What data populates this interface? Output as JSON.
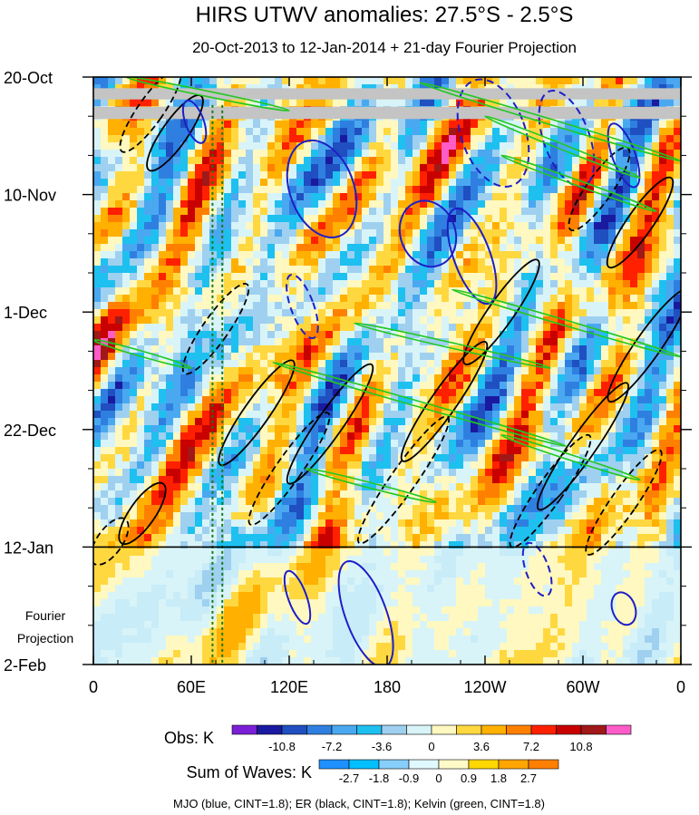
{
  "chart_data": {
    "type": "heatmap",
    "title": "HIRS UTWV anomalies: 27.5°S - 2.5°S",
    "subtitle": "20-Oct-2013 to 12-Jan-2014 + 21-day Fourier Projection",
    "x_ticks": [
      "0",
      "60E",
      "120E",
      "180",
      "120W",
      "60W",
      "0"
    ],
    "x_range": [
      0,
      360
    ],
    "y_ticks": [
      "20-Oct",
      "10-Nov",
      "1-Dec",
      "22-Dec",
      "12-Jan",
      "2-Feb"
    ],
    "y_range_days": [
      0,
      105
    ],
    "projection_start_day": 84,
    "projection_label": [
      "Fourier",
      "Projection"
    ],
    "missing_bands_days": [
      [
        2.0,
        4.0
      ],
      [
        5.3,
        7.5
      ]
    ],
    "obs_colorbar": {
      "label": "Obs: K",
      "levels": [
        "-10.8",
        "-7.2",
        "-3.6",
        "0",
        "3.6",
        "7.2",
        "10.8"
      ],
      "colors": [
        "#7b1fd6",
        "#1a1aa0",
        "#1f4fc0",
        "#2f7fe0",
        "#4aa8f0",
        "#1ec0f0",
        "#9fd0f0",
        "#d8f4f8",
        "#fff8c0",
        "#ffd840",
        "#ffb000",
        "#ff8000",
        "#ff2000",
        "#c80000",
        "#a01818",
        "#ff5cc8"
      ]
    },
    "waves_colorbar": {
      "label": "Sum of Waves: K",
      "levels": [
        "-2.7",
        "-1.8",
        "-0.9",
        "0",
        "0.9",
        "1.8",
        "2.7"
      ],
      "colors": [
        "#1e90ff",
        "#00bfff",
        "#87cefa",
        "#e0f8ff",
        "#fffac8",
        "#ffd700",
        "#ffa500",
        "#ff7f00"
      ]
    },
    "footer": "MJO (blue, CINT=1.8); ER (black, CINT=1.8); Kelvin (green, CINT=1.8)",
    "overlay_colors": {
      "MJO": "#1e1ec8",
      "ER": "#000000",
      "Kelvin": "#22c822",
      "guide": "#1a7a1a"
    },
    "guide_lines_lon": [
      73,
      79
    ],
    "mjo_contours": [
      {
        "lon": 62,
        "day": 8,
        "rlon": 4,
        "rday": 4,
        "dashed": false
      },
      {
        "lon": 140,
        "day": 20,
        "rlon": 14,
        "rday": 9,
        "dashed": false
      },
      {
        "lon": 205,
        "day": 28,
        "rlon": 12,
        "rday": 6,
        "dashed": false
      },
      {
        "lon": 232,
        "day": 32,
        "rlon": 8,
        "rday": 9,
        "dashed": false
      },
      {
        "lon": 245,
        "day": 10,
        "rlon": 14,
        "rday": 10,
        "dashed": true
      },
      {
        "lon": 290,
        "day": 11,
        "rlon": 10,
        "rday": 9,
        "dashed": true
      },
      {
        "lon": 128,
        "day": 41,
        "rlon": 5,
        "rday": 6,
        "dashed": true
      },
      {
        "lon": 167,
        "day": 96,
        "rlon": 9,
        "rday": 10,
        "dashed": false
      },
      {
        "lon": 125,
        "day": 93,
        "rlon": 4,
        "rday": 5,
        "dashed": false
      },
      {
        "lon": 272,
        "day": 88,
        "rlon": 5,
        "rday": 5,
        "dashed": true
      },
      {
        "lon": 325,
        "day": 95,
        "rlon": 5,
        "rday": 3,
        "dashed": false
      },
      {
        "lon": 325,
        "day": 14,
        "rlon": 5,
        "rday": 6,
        "dashed": false
      }
    ],
    "er_contours": [
      {
        "lon": 35,
        "day": 6,
        "len": 55,
        "dashed": true
      },
      {
        "lon": 50,
        "day": 10,
        "len": 50,
        "dashed": false
      },
      {
        "lon": 75,
        "day": 45,
        "len": 60,
        "dashed": true
      },
      {
        "lon": 100,
        "day": 60,
        "len": 70,
        "dashed": false
      },
      {
        "lon": 120,
        "day": 70,
        "len": 75,
        "dashed": true
      },
      {
        "lon": 145,
        "day": 62,
        "len": 80,
        "dashed": false
      },
      {
        "lon": 190,
        "day": 72,
        "len": 85,
        "dashed": true
      },
      {
        "lon": 215,
        "day": 58,
        "len": 80,
        "dashed": false
      },
      {
        "lon": 250,
        "day": 42,
        "len": 70,
        "dashed": false
      },
      {
        "lon": 280,
        "day": 74,
        "len": 75,
        "dashed": true
      },
      {
        "lon": 300,
        "day": 66,
        "len": 85,
        "dashed": false
      },
      {
        "lon": 325,
        "day": 76,
        "len": 70,
        "dashed": true
      },
      {
        "lon": 340,
        "day": 48,
        "len": 75,
        "dashed": false
      },
      {
        "lon": 310,
        "day": 20,
        "len": 55,
        "dashed": true
      },
      {
        "lon": 335,
        "day": 26,
        "len": 60,
        "dashed": false
      },
      {
        "lon": 30,
        "day": 78,
        "len": 40,
        "dashed": false
      },
      {
        "lon": 10,
        "day": 83,
        "len": 30,
        "dashed": true
      }
    ],
    "kelvin_contours": [
      {
        "lon1": 200,
        "day1": 1,
        "lon2": 360,
        "day2": 15
      },
      {
        "lon1": 240,
        "day1": 7,
        "lon2": 335,
        "day2": 18
      },
      {
        "lon1": 250,
        "day1": 14,
        "lon2": 345,
        "day2": 24
      },
      {
        "lon1": 110,
        "day1": 51,
        "lon2": 290,
        "day2": 66
      },
      {
        "lon1": 220,
        "day1": 38,
        "lon2": 360,
        "day2": 50
      },
      {
        "lon1": 160,
        "day1": 44,
        "lon2": 280,
        "day2": 52
      },
      {
        "lon1": 20,
        "day1": 0,
        "lon2": 120,
        "day2": 6
      },
      {
        "lon1": 0,
        "day1": 47,
        "lon2": 60,
        "day2": 52
      },
      {
        "lon1": 250,
        "day1": 64,
        "lon2": 335,
        "day2": 72
      },
      {
        "lon1": 130,
        "day1": 70,
        "lon2": 210,
        "day2": 76
      }
    ]
  }
}
